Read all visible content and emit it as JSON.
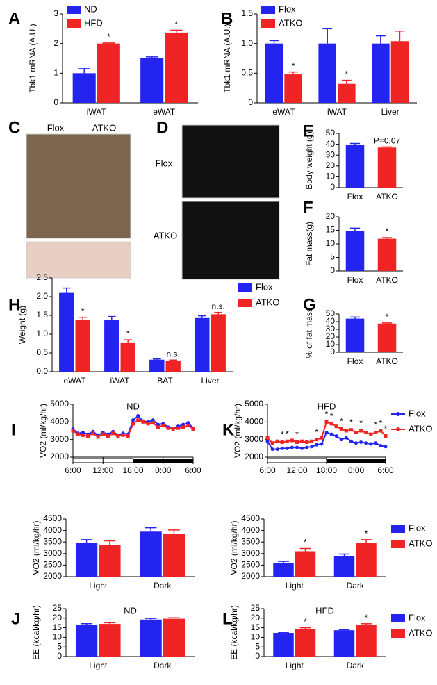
{
  "chart_data": [
    {
      "type": "bar",
      "label": "A",
      "ylabel": "Tbk1 mRNA (A.U.)",
      "categories": [
        "iWAT",
        "eWAT"
      ],
      "series": [
        {
          "name": "ND",
          "color": "#2424f0",
          "values": [
            1.0,
            1.5
          ],
          "errors": [
            0.15,
            0.05
          ]
        },
        {
          "name": "HFD",
          "color": "#f02424",
          "values": [
            2.0,
            2.37
          ],
          "errors": [
            0.02,
            0.08
          ],
          "annotations": [
            "*",
            "*"
          ]
        }
      ],
      "ylim": [
        0,
        3
      ],
      "yticks": [
        0,
        1,
        2,
        3
      ],
      "legend": "top-left"
    },
    {
      "type": "bar",
      "label": "B",
      "ylabel": "Tbk1 mRNA (A.U.)",
      "categories": [
        "eWAT",
        "iWAT",
        "Liver"
      ],
      "series": [
        {
          "name": "Flox",
          "color": "#2424f0",
          "values": [
            1.0,
            1.0,
            1.0
          ],
          "errors": [
            0.05,
            0.25,
            0.13
          ]
        },
        {
          "name": "ATKO",
          "color": "#f02424",
          "values": [
            0.48,
            0.32,
            1.04
          ],
          "errors": [
            0.04,
            0.06,
            0.17
          ],
          "annotations": [
            "*",
            "*",
            null
          ]
        }
      ],
      "ylim": [
        0,
        1.5
      ],
      "yticks": [
        0,
        0.5,
        {
          "value": 1,
          "label": "1.0"
        },
        1.5
      ],
      "legend": "top-left"
    },
    {
      "type": "image",
      "label": "C",
      "labels": [
        "Flox",
        "ATKO"
      ]
    },
    {
      "type": "image",
      "label": "D",
      "labels": [
        "Flox",
        "ATKO"
      ]
    },
    {
      "type": "bar",
      "label": "E",
      "ylabel": "Body weight (g)",
      "categories": [
        "Flox",
        "ATKO"
      ],
      "values": [
        39.5,
        37.0
      ],
      "errors": [
        1.2,
        0.6
      ],
      "colors": [
        "#2424f0",
        "#f02424"
      ],
      "annotations": [
        null,
        "P=0.07"
      ],
      "ylim": [
        0,
        50
      ],
      "yticks": [
        0,
        10,
        20,
        30,
        40,
        50
      ]
    },
    {
      "type": "bar",
      "label": "F",
      "ylabel": "Fat mass(g)",
      "categories": [
        "Flox",
        "ATKO"
      ],
      "values": [
        14.8,
        11.9
      ],
      "errors": [
        1.0,
        0.4
      ],
      "colors": [
        "#2424f0",
        "#f02424"
      ],
      "annotations": [
        null,
        "*"
      ],
      "ylim": [
        0,
        20
      ],
      "yticks": [
        0,
        5,
        10,
        15,
        20
      ]
    },
    {
      "type": "bar",
      "label": "G",
      "ylabel": "% of fat mass",
      "categories": [
        "Flox",
        "ATKO"
      ],
      "values": [
        44.0,
        37.5
      ],
      "errors": [
        2.0,
        0.8
      ],
      "colors": [
        "#2424f0",
        "#f02424"
      ],
      "annotations": [
        null,
        "*"
      ],
      "ylim": [
        0,
        50
      ],
      "yticks": [
        0,
        10,
        20,
        30,
        40,
        50
      ]
    },
    {
      "type": "bar",
      "label": "H",
      "ylabel": "Weight (g)",
      "categories": [
        "eWAT",
        "iWAT",
        "BAT",
        "Liver"
      ],
      "series": [
        {
          "name": "Flox",
          "color": "#2424f0",
          "values": [
            2.1,
            1.37,
            0.32,
            1.43
          ],
          "errors": [
            0.13,
            0.1,
            0.02,
            0.06
          ]
        },
        {
          "name": "ATKO",
          "color": "#f02424",
          "values": [
            1.38,
            0.78,
            0.29,
            1.53
          ],
          "errors": [
            0.07,
            0.07,
            0.02,
            0.05
          ],
          "annotations": [
            "*",
            "*",
            "n.s.",
            "n.s."
          ]
        }
      ],
      "ylim": [
        0,
        2.5
      ],
      "yticks": [
        {
          "value": 0,
          "label": "0.0"
        },
        0.5,
        {
          "value": 1,
          "label": "1.0"
        },
        1.5,
        {
          "value": 2,
          "label": "2.0"
        },
        2.5
      ],
      "legend": "right"
    },
    {
      "type": "line",
      "label": "I",
      "title": "ND",
      "ylabel": "VO2 (ml/kg/hr)",
      "x": [
        0,
        1,
        2,
        3,
        4,
        5,
        6,
        7,
        8,
        9,
        10,
        11,
        12,
        13,
        14,
        15,
        16,
        17,
        18,
        19,
        20,
        21,
        22,
        23,
        24
      ],
      "series": [
        {
          "color": "#2424f0",
          "values": [
            3600,
            3350,
            3400,
            3300,
            3450,
            3250,
            3400,
            3300,
            3450,
            3250,
            3350,
            3300,
            4100,
            4350,
            4050,
            4000,
            4100,
            3850,
            3900,
            3700,
            3600,
            3750,
            3850,
            3950,
            3650
          ]
        },
        {
          "color": "#f02424",
          "values": [
            3500,
            3300,
            3250,
            3200,
            3350,
            3150,
            3300,
            3200,
            3350,
            3200,
            3250,
            3200,
            3900,
            4100,
            4000,
            3900,
            3950,
            3700,
            3800,
            3650,
            3600,
            3650,
            3700,
            3800,
            3600
          ]
        }
      ],
      "xlim": [
        0,
        24
      ],
      "xticks": [
        {
          "value": 0,
          "label": "6:00"
        },
        {
          "value": 6,
          "label": "12:00"
        },
        {
          "value": 12,
          "label": "18:00"
        },
        {
          "value": 18,
          "label": "0:00"
        },
        {
          "value": 24,
          "label": "6:00"
        }
      ],
      "ylim": [
        2000,
        5000
      ],
      "yticks": [
        2000,
        3000,
        4000,
        5000
      ]
    },
    {
      "type": "line",
      "label": "K",
      "title": "HFD",
      "ylabel": "VO2 (ml/kg/hr)",
      "x": [
        0,
        1,
        2,
        3,
        4,
        5,
        6,
        7,
        8,
        9,
        10,
        11,
        12,
        13,
        14,
        15,
        16,
        17,
        18,
        19,
        20,
        21,
        22,
        23,
        24
      ],
      "series": [
        {
          "name": "Flox",
          "color": "#2424f0",
          "values": [
            2900,
            2450,
            2450,
            2500,
            2500,
            2550,
            2550,
            2500,
            2550,
            2600,
            2700,
            2750,
            3400,
            3300,
            3200,
            3000,
            3100,
            2900,
            2800,
            2850,
            2800,
            2750,
            2800,
            2650,
            2600
          ]
        },
        {
          "name": "ATKO",
          "color": "#f02424",
          "values": [
            3100,
            2800,
            2900,
            2850,
            2900,
            2950,
            2850,
            2900,
            2850,
            2900,
            3000,
            3100,
            4000,
            3900,
            3750,
            3600,
            3500,
            3550,
            3400,
            3500,
            3400,
            3300,
            3400,
            3500,
            3200
          ],
          "annotations": [
            null,
            null,
            null,
            "*",
            "*",
            null,
            "*",
            null,
            null,
            null,
            "*",
            null,
            "*",
            "*",
            null,
            "*",
            null,
            "*",
            null,
            "*",
            null,
            null,
            "*",
            "*",
            "*"
          ]
        }
      ],
      "xlim": [
        0,
        24
      ],
      "xticks": [
        {
          "value": 0,
          "label": "6:00"
        },
        {
          "value": 6,
          "label": "12:00"
        },
        {
          "value": 12,
          "label": "18:00"
        },
        {
          "value": 18,
          "label": "0:00"
        },
        {
          "value": 24,
          "label": "6:00"
        }
      ],
      "ylim": [
        2000,
        5000
      ],
      "yticks": [
        2000,
        3000,
        4000,
        5000
      ],
      "legend": "right"
    },
    {
      "type": "bar",
      "ylabel": "VO2 (ml/kg/hr)",
      "categories": [
        "Light",
        "Dark"
      ],
      "series": [
        {
          "color": "#2424f0",
          "values": [
            3450,
            3950
          ],
          "errors": [
            150,
            170
          ]
        },
        {
          "color": "#f02424",
          "values": [
            3380,
            3850
          ],
          "errors": [
            170,
            170
          ]
        }
      ],
      "ylim": [
        2000,
        4500
      ],
      "yticks": [
        2000,
        2500,
        3000,
        3500,
        4000,
        4500
      ]
    },
    {
      "type": "bar",
      "ylabel": "VO2 (ml/kg/hr)",
      "categories": [
        "Light",
        "Dark"
      ],
      "series": [
        {
          "name": "Flox",
          "color": "#2424f0",
          "values": [
            2580,
            2900
          ],
          "errors": [
            80,
            80
          ]
        },
        {
          "name": "ATKO",
          "color": "#f02424",
          "values": [
            3100,
            3450
          ],
          "errors": [
            120,
            150
          ],
          "annotations": [
            "*",
            "*"
          ]
        }
      ],
      "ylim": [
        2000,
        4500
      ],
      "yticks": [
        2000,
        2500,
        3000,
        3500,
        4000,
        4500
      ],
      "legend": "right"
    },
    {
      "type": "bar",
      "label": "J",
      "title": "ND",
      "ylabel": "EE (kcal/kg/hr)",
      "categories": [
        "Light",
        "Dark"
      ],
      "series": [
        {
          "color": "#2424f0",
          "values": [
            16.5,
            19.3
          ],
          "errors": [
            0.6,
            0.6
          ]
        },
        {
          "color": "#f02424",
          "values": [
            17.0,
            19.7
          ],
          "errors": [
            0.6,
            0.5
          ]
        }
      ],
      "ylim": [
        0,
        25
      ],
      "yticks": [
        0,
        5,
        10,
        15,
        20,
        25
      ]
    },
    {
      "type": "bar",
      "label": "L",
      "title": "HFD",
      "ylabel": "EE (kcal/kg/hr)",
      "categories": [
        "Light",
        "Dark"
      ],
      "series": [
        {
          "name": "Flox",
          "color": "#2424f0",
          "values": [
            12.3,
            13.7
          ],
          "errors": [
            0.3,
            0.3
          ]
        },
        {
          "name": "ATKO",
          "color": "#f02424",
          "values": [
            14.5,
            16.5
          ],
          "errors": [
            0.5,
            0.6
          ],
          "annotations": [
            "*",
            "*"
          ]
        }
      ],
      "ylim": [
        0,
        25
      ],
      "yticks": [
        0,
        5,
        10,
        15,
        20,
        25
      ],
      "legend": "right"
    }
  ]
}
